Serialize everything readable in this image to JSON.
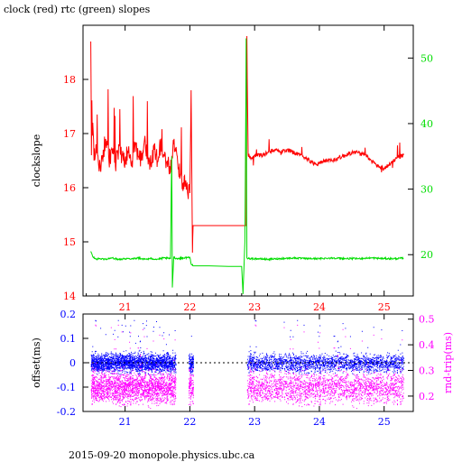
{
  "title": "clock (red) rtc (green) slopes",
  "footer": "2015-09-20 monopole.physics.ubc.ca",
  "colors": {
    "clock": "#ff0000",
    "rtc": "#00dd00",
    "offset": "#0000ff",
    "rndtrip": "#ff00ff",
    "left_axis": "#ff0000",
    "right_axis": "#00dd00"
  },
  "chart_data": [
    {
      "type": "line",
      "title": "clock (red) rtc (green) slopes",
      "xlabel": "",
      "ylabel": "clockslope",
      "y2label": "",
      "xlim": [
        20.35,
        25.45
      ],
      "ylim": [
        14,
        19
      ],
      "y2lim": [
        13.7,
        55.0
      ],
      "xticks": [
        21,
        22,
        23,
        24,
        25
      ],
      "yticks": [
        14,
        15,
        16,
        17,
        18
      ],
      "y2ticks": [
        20,
        30,
        40,
        50
      ],
      "series": [
        {
          "name": "clock",
          "axis": "left",
          "x": [
            20.47,
            20.48,
            20.5,
            20.52,
            20.55,
            20.6,
            20.65,
            20.7,
            20.75,
            20.8,
            20.85,
            20.9,
            20.95,
            21.0,
            21.05,
            21.1,
            21.15,
            21.2,
            21.25,
            21.3,
            21.35,
            21.4,
            21.45,
            21.5,
            21.55,
            21.6,
            21.65,
            21.7,
            21.75,
            21.8,
            21.85,
            21.9,
            21.95,
            22.0,
            22.02,
            22.04,
            22.05,
            22.87,
            22.88,
            22.9,
            22.95,
            23.0,
            23.1,
            23.2,
            23.3,
            23.4,
            23.5,
            23.6,
            23.7,
            23.8,
            23.9,
            24.0,
            24.1,
            24.2,
            24.3,
            24.4,
            24.5,
            24.6,
            24.7,
            24.8,
            24.9,
            25.0,
            25.1,
            25.2,
            25.3
          ],
          "y": [
            18.7,
            16.6,
            17.2,
            16.5,
            16.8,
            16.3,
            16.6,
            16.9,
            16.5,
            16.7,
            16.4,
            16.8,
            16.6,
            16.5,
            16.7,
            16.4,
            16.8,
            16.6,
            16.5,
            16.9,
            16.6,
            16.4,
            16.7,
            16.5,
            16.8,
            16.6,
            16.5,
            16.3,
            16.8,
            16.6,
            16.2,
            16.1,
            16.0,
            15.9,
            17.8,
            14.8,
            15.3,
            15.3,
            18.8,
            16.6,
            16.55,
            16.6,
            16.6,
            16.65,
            16.7,
            16.65,
            16.7,
            16.65,
            16.6,
            16.55,
            16.45,
            16.45,
            16.5,
            16.5,
            16.55,
            16.6,
            16.65,
            16.65,
            16.6,
            16.5,
            16.4,
            16.35,
            16.45,
            16.55,
            16.6
          ]
        },
        {
          "name": "rtc",
          "axis": "right",
          "x": [
            20.47,
            20.5,
            20.55,
            20.6,
            20.7,
            20.8,
            20.9,
            21.0,
            21.1,
            21.2,
            21.3,
            21.4,
            21.5,
            21.6,
            21.7,
            21.72,
            21.73,
            21.75,
            21.8,
            21.9,
            22.0,
            22.02,
            22.04,
            22.05,
            22.3,
            22.6,
            22.8,
            22.82,
            22.85,
            22.87,
            22.88,
            22.9,
            23.0,
            23.2,
            23.4,
            23.6,
            23.8,
            24.0,
            24.2,
            24.4,
            24.6,
            24.8,
            25.0,
            25.2,
            25.3
          ],
          "y": [
            20.5,
            19.7,
            19.3,
            19.4,
            19.3,
            19.5,
            19.3,
            19.4,
            19.4,
            19.5,
            19.3,
            19.4,
            19.3,
            19.5,
            19.4,
            35.0,
            15.0,
            19.6,
            19.4,
            19.5,
            19.6,
            18.6,
            18.5,
            18.3,
            18.3,
            18.2,
            18.2,
            14.0,
            22.0,
            53.0,
            19.5,
            19.4,
            19.4,
            19.3,
            19.4,
            19.5,
            19.4,
            19.4,
            19.5,
            19.4,
            19.4,
            19.5,
            19.4,
            19.4,
            19.5
          ]
        }
      ]
    },
    {
      "type": "scatter",
      "title": "",
      "xlabel": "",
      "ylabel": "offset(ms)",
      "y2label": "rnd-trip(ms)",
      "xlim": [
        20.35,
        25.45
      ],
      "ylim": [
        -0.2,
        0.2
      ],
      "y2lim": [
        0.14,
        0.52
      ],
      "xticks": [
        21,
        22,
        23,
        24,
        25
      ],
      "yticks": [
        -0.2,
        -0.1,
        0,
        0.1,
        0.2
      ],
      "y2ticks": [
        0.2,
        0.3,
        0.4,
        0.5
      ],
      "coverage": [
        [
          20.47,
          21.78
        ],
        [
          21.98,
          22.05
        ],
        [
          22.88,
          25.3
        ]
      ],
      "series": [
        {
          "name": "offset",
          "axis": "left",
          "center": 0.0,
          "spread": 0.03
        },
        {
          "name": "rnd-trip",
          "axis": "right",
          "center": 0.235,
          "spread": 0.05
        }
      ]
    }
  ]
}
